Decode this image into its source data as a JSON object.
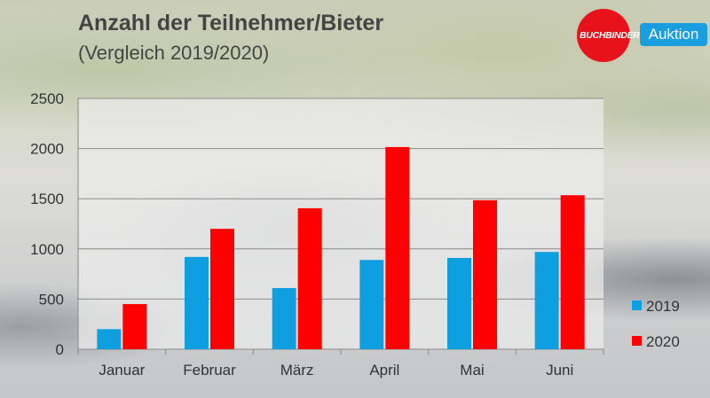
{
  "chart_data": {
    "type": "bar",
    "title": "Anzahl der Teilnehmer/Bieter",
    "subtitle": "(Vergleich 2019/2020)",
    "categories": [
      "Januar",
      "Februar",
      "März",
      "April",
      "Mai",
      "Juni"
    ],
    "series": [
      {
        "name": "2019",
        "color": "#0d9fe0",
        "values": [
          200,
          920,
          610,
          890,
          910,
          970
        ]
      },
      {
        "name": "2020",
        "color": "#fe0000",
        "values": [
          450,
          1200,
          1405,
          2015,
          1485,
          1535
        ]
      }
    ],
    "ylim": [
      0,
      2500
    ],
    "yticks": [
      0,
      500,
      1000,
      1500,
      2000,
      2500
    ],
    "grid": true,
    "legend": "right"
  },
  "logo": {
    "brand": "BUCHBINDER",
    "badge": "Auktion"
  }
}
